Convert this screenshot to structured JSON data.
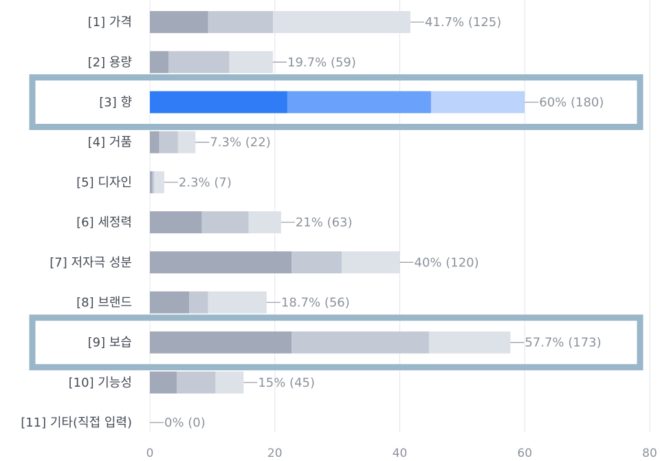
{
  "chart_data": {
    "type": "bar",
    "orientation": "horizontal",
    "stacked": true,
    "categories": [
      "[1] 가격",
      "[2] 용량",
      "[3] 향",
      "[4] 거품",
      "[5] 디자인",
      "[6] 세정력",
      "[7] 저자극 성분",
      "[8] 브랜드",
      "[9] 보습",
      "[10] 기능성",
      "[11] 기타(직접 입력)"
    ],
    "series": [
      {
        "values": [
          9.3,
          3.0,
          22.0,
          1.5,
          0.4,
          8.3,
          22.7,
          6.3,
          22.7,
          4.3,
          0
        ]
      },
      {
        "values": [
          10.4,
          9.7,
          23.0,
          3.0,
          0.3,
          7.5,
          8.0,
          3.0,
          22.0,
          6.2,
          0
        ]
      },
      {
        "values": [
          22.0,
          7.0,
          15.0,
          2.8,
          1.6,
          5.2,
          9.3,
          9.4,
          13.0,
          4.5,
          0
        ]
      }
    ],
    "totals_label": [
      "41.7% (125)",
      "19.7% (59)",
      "60% (180)",
      "7.3% (22)",
      "2.3% (7)",
      "21% (63)",
      "40% (120)",
      "18.7% (56)",
      "57.7% (173)",
      "15% (45)",
      "0% (0)"
    ],
    "totals": [
      41.7,
      19.7,
      60,
      7.3,
      2.3,
      21,
      40,
      18.7,
      57.7,
      15,
      0
    ],
    "xlim": [
      0,
      80
    ],
    "xticks": [
      "0",
      "20",
      "40",
      "60",
      "80"
    ],
    "grid": "vertical",
    "highlighted_categories": [
      "[3] 향",
      "[9] 보습"
    ],
    "colors": {
      "normal": [
        "#a2a9b8",
        "#c4cad5",
        "#dde1e8"
      ],
      "highlight": [
        "#2f7cf6",
        "#6aa1fb",
        "#bcd3fc"
      ],
      "grid": "#e3e5ea",
      "frame": "#9ab6c9",
      "connector": "#9aa0aa"
    }
  }
}
